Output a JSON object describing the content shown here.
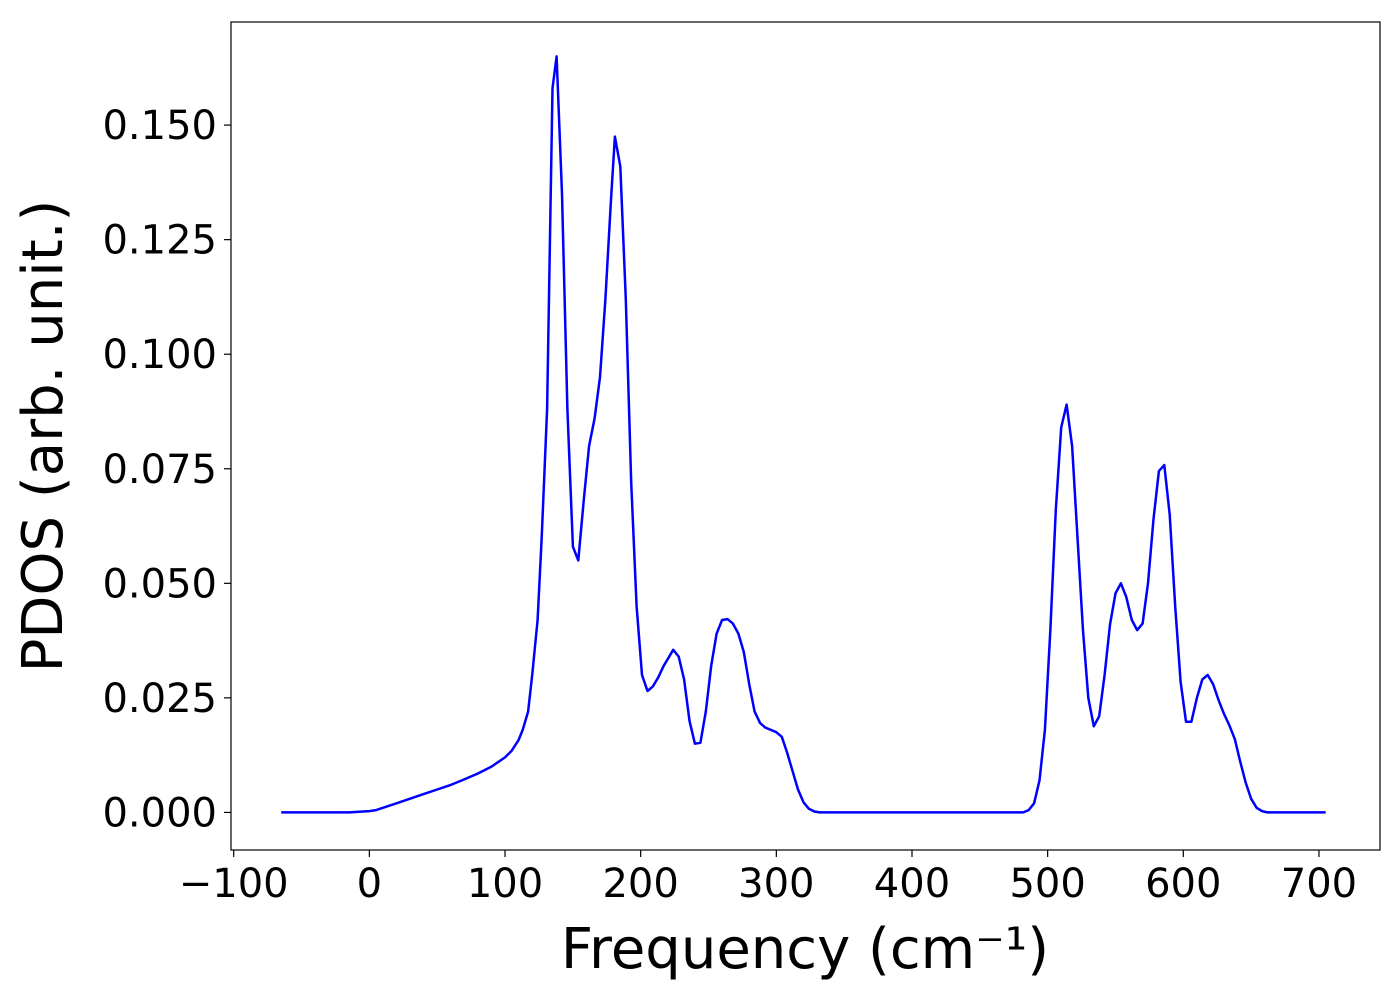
{
  "chart_data": {
    "type": "line",
    "title": "",
    "xlabel": "Frequency",
    "xlabel_unit": "(cm⁻¹)",
    "ylabel": "PDOS (arb. unit.)",
    "xlim": [
      -102,
      745
    ],
    "ylim": [
      -0.0082,
      0.1725
    ],
    "x_ticks": [
      -100,
      0,
      100,
      200,
      300,
      400,
      500,
      600,
      700
    ],
    "x_tick_labels": [
      "−100",
      "0",
      "100",
      "200",
      "300",
      "400",
      "500",
      "600",
      "700"
    ],
    "y_ticks": [
      0.0,
      0.025,
      0.05,
      0.075,
      0.1,
      0.125,
      0.15
    ],
    "y_tick_labels": [
      "0.000",
      "0.025",
      "0.050",
      "0.075",
      "0.100",
      "0.125",
      "0.150"
    ],
    "grid": false,
    "legend": "none",
    "series": [
      {
        "color": "#0000ff",
        "x": [
          -65,
          -15,
          0,
          5,
          10,
          20,
          30,
          40,
          50,
          60,
          70,
          80,
          90,
          100,
          105,
          110,
          113,
          117,
          120,
          124,
          127,
          131,
          135,
          138,
          142,
          146,
          150,
          154,
          158,
          162,
          166,
          170,
          174,
          178,
          181,
          185,
          189,
          193,
          197,
          201,
          205,
          209,
          213,
          217,
          221,
          224,
          228,
          232,
          236,
          240,
          244,
          248,
          252,
          256,
          260,
          264,
          268,
          272,
          276,
          280,
          284,
          288,
          292,
          296,
          300,
          304,
          308,
          312,
          316,
          320,
          324,
          328,
          332,
          336,
          350,
          400,
          450,
          482,
          486,
          490,
          494,
          498,
          502,
          506,
          510,
          514,
          518,
          522,
          526,
          530,
          534,
          538,
          542,
          546,
          550,
          554,
          558,
          562,
          566,
          570,
          574,
          578,
          582,
          586,
          590,
          594,
          598,
          602,
          606,
          610,
          614,
          618,
          622,
          626,
          630,
          634,
          638,
          642,
          646,
          650,
          654,
          658,
          662,
          705
        ],
        "y": [
          0,
          0,
          0.0003,
          0.0005,
          0.001,
          0.002,
          0.003,
          0.004,
          0.005,
          0.006,
          0.0072,
          0.0085,
          0.01,
          0.012,
          0.0135,
          0.0158,
          0.018,
          0.022,
          0.03,
          0.042,
          0.06,
          0.088,
          0.158,
          0.165,
          0.135,
          0.088,
          0.058,
          0.055,
          0.068,
          0.08,
          0.086,
          0.095,
          0.112,
          0.133,
          0.1475,
          0.141,
          0.112,
          0.072,
          0.045,
          0.03,
          0.0265,
          0.0275,
          0.0295,
          0.032,
          0.034,
          0.0355,
          0.034,
          0.029,
          0.02,
          0.015,
          0.0152,
          0.022,
          0.032,
          0.039,
          0.042,
          0.0422,
          0.0412,
          0.039,
          0.035,
          0.028,
          0.022,
          0.0195,
          0.0185,
          0.018,
          0.0175,
          0.0165,
          0.013,
          0.009,
          0.005,
          0.0022,
          0.0008,
          0.0002,
          0,
          0,
          0,
          0,
          0,
          0,
          0.0005,
          0.002,
          0.007,
          0.018,
          0.04,
          0.066,
          0.084,
          0.089,
          0.08,
          0.06,
          0.04,
          0.025,
          0.0188,
          0.021,
          0.03,
          0.041,
          0.0478,
          0.05,
          0.047,
          0.042,
          0.0398,
          0.0412,
          0.05,
          0.064,
          0.0745,
          0.0758,
          0.065,
          0.045,
          0.0285,
          0.0198,
          0.0198,
          0.025,
          0.029,
          0.03,
          0.028,
          0.0245,
          0.0215,
          0.019,
          0.016,
          0.011,
          0.0065,
          0.003,
          0.001,
          0.0003,
          0,
          0
        ]
      }
    ]
  }
}
